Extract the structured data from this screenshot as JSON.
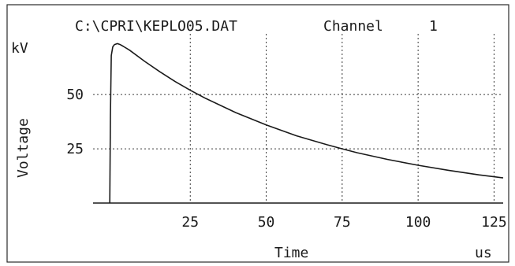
{
  "chart_data": {
    "type": "line",
    "title": "C:\\CPRI\\KEPLO05.DAT",
    "channel_label": "Channel",
    "channel_number": "1",
    "xlabel": "Time",
    "x_unit": "us",
    "ylabel": "Voltage",
    "y_unit": "kV",
    "xlim": [
      -7,
      128
    ],
    "ylim": [
      0,
      78
    ],
    "x_ticks": [
      25,
      50,
      75,
      100,
      125
    ],
    "y_ticks": [
      25,
      50
    ],
    "grid": true,
    "series": [
      {
        "x": [
          -1.5,
          -1.3,
          -1.0,
          -0.5,
          0,
          1,
          2,
          3,
          5,
          10,
          15,
          20,
          25,
          30,
          40,
          50,
          60,
          70,
          75,
          80,
          90,
          100,
          110,
          120,
          125,
          128
        ],
        "y": [
          0,
          40,
          68,
          72,
          73,
          73.5,
          73,
          72.2,
          70.5,
          65.3,
          60.5,
          56,
          52,
          48.3,
          41.7,
          36,
          31,
          26.9,
          25,
          23.2,
          20.1,
          17.4,
          15.1,
          13,
          12.1,
          11.6
        ]
      }
    ]
  }
}
